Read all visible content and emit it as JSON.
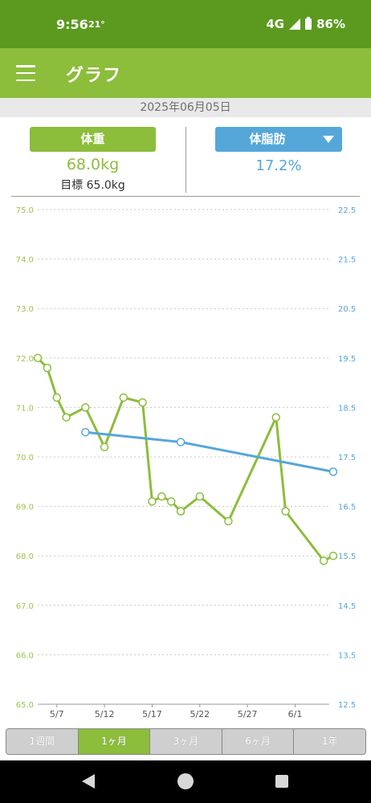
{
  "status": {
    "time": "9:56",
    "temp": "21°",
    "network": "4G",
    "battery": "86%"
  },
  "app_bar": {
    "title": "グラフ"
  },
  "date": "2025年06月05日",
  "metrics": {
    "weight_label": "体重",
    "weight_value": "68.0kg",
    "weight_target": "目標 65.0kg",
    "fat_label": "体脂肪",
    "fat_value": "17.2%"
  },
  "colors": {
    "weight": "#8cbd3b",
    "fat": "#55a7d9",
    "statusbar": "#5b9a1f"
  },
  "chart_data": {
    "type": "line",
    "x_ticks": [
      "5/7",
      "5/12",
      "5/17",
      "5/22",
      "5/27",
      "6/1"
    ],
    "y_left": {
      "ticks": [
        "75.0",
        "74.0",
        "73.0",
        "72.0",
        "71.0",
        "70.0",
        "69.0",
        "68.0",
        "67.0",
        "66.0",
        "65.0"
      ],
      "ylim": [
        65,
        75
      ]
    },
    "y_right": {
      "ticks": [
        "22.5",
        "21.5",
        "20.5",
        "19.5",
        "18.5",
        "17.5",
        "16.5",
        "15.5",
        "14.5",
        "13.5",
        "12.5"
      ],
      "ylim": [
        12.5,
        22.5
      ]
    },
    "x_day_range": [
      "2025-05-05",
      "2025-06-05"
    ],
    "series": [
      {
        "axis": "left",
        "color": "#8cbd3b",
        "points": [
          [
            "2025-05-05",
            72.0
          ],
          [
            "2025-05-06",
            71.8
          ],
          [
            "2025-05-07",
            71.2
          ],
          [
            "2025-05-08",
            70.8
          ],
          [
            "2025-05-10",
            71.0
          ],
          [
            "2025-05-12",
            70.2
          ],
          [
            "2025-05-14",
            71.2
          ],
          [
            "2025-05-16",
            71.1
          ],
          [
            "2025-05-17",
            69.1
          ],
          [
            "2025-05-18",
            69.2
          ],
          [
            "2025-05-19",
            69.1
          ],
          [
            "2025-05-20",
            68.9
          ],
          [
            "2025-05-22",
            69.2
          ],
          [
            "2025-05-25",
            68.7
          ],
          [
            "2025-05-30",
            70.8
          ],
          [
            "2025-05-31",
            68.9
          ],
          [
            "2025-06-04",
            67.9
          ],
          [
            "2025-06-05",
            68.0
          ]
        ]
      },
      {
        "axis": "right",
        "color": "#55a7d9",
        "points": [
          [
            "2025-05-10",
            18.0
          ],
          [
            "2025-05-20",
            17.8
          ],
          [
            "2025-06-05",
            17.2
          ]
        ]
      }
    ]
  },
  "period_tabs": [
    {
      "label": "1週間",
      "active": false
    },
    {
      "label": "1ヶ月",
      "active": true
    },
    {
      "label": "3ヶ月",
      "active": false
    },
    {
      "label": "6ヶ月",
      "active": false
    },
    {
      "label": "1年",
      "active": false
    }
  ]
}
